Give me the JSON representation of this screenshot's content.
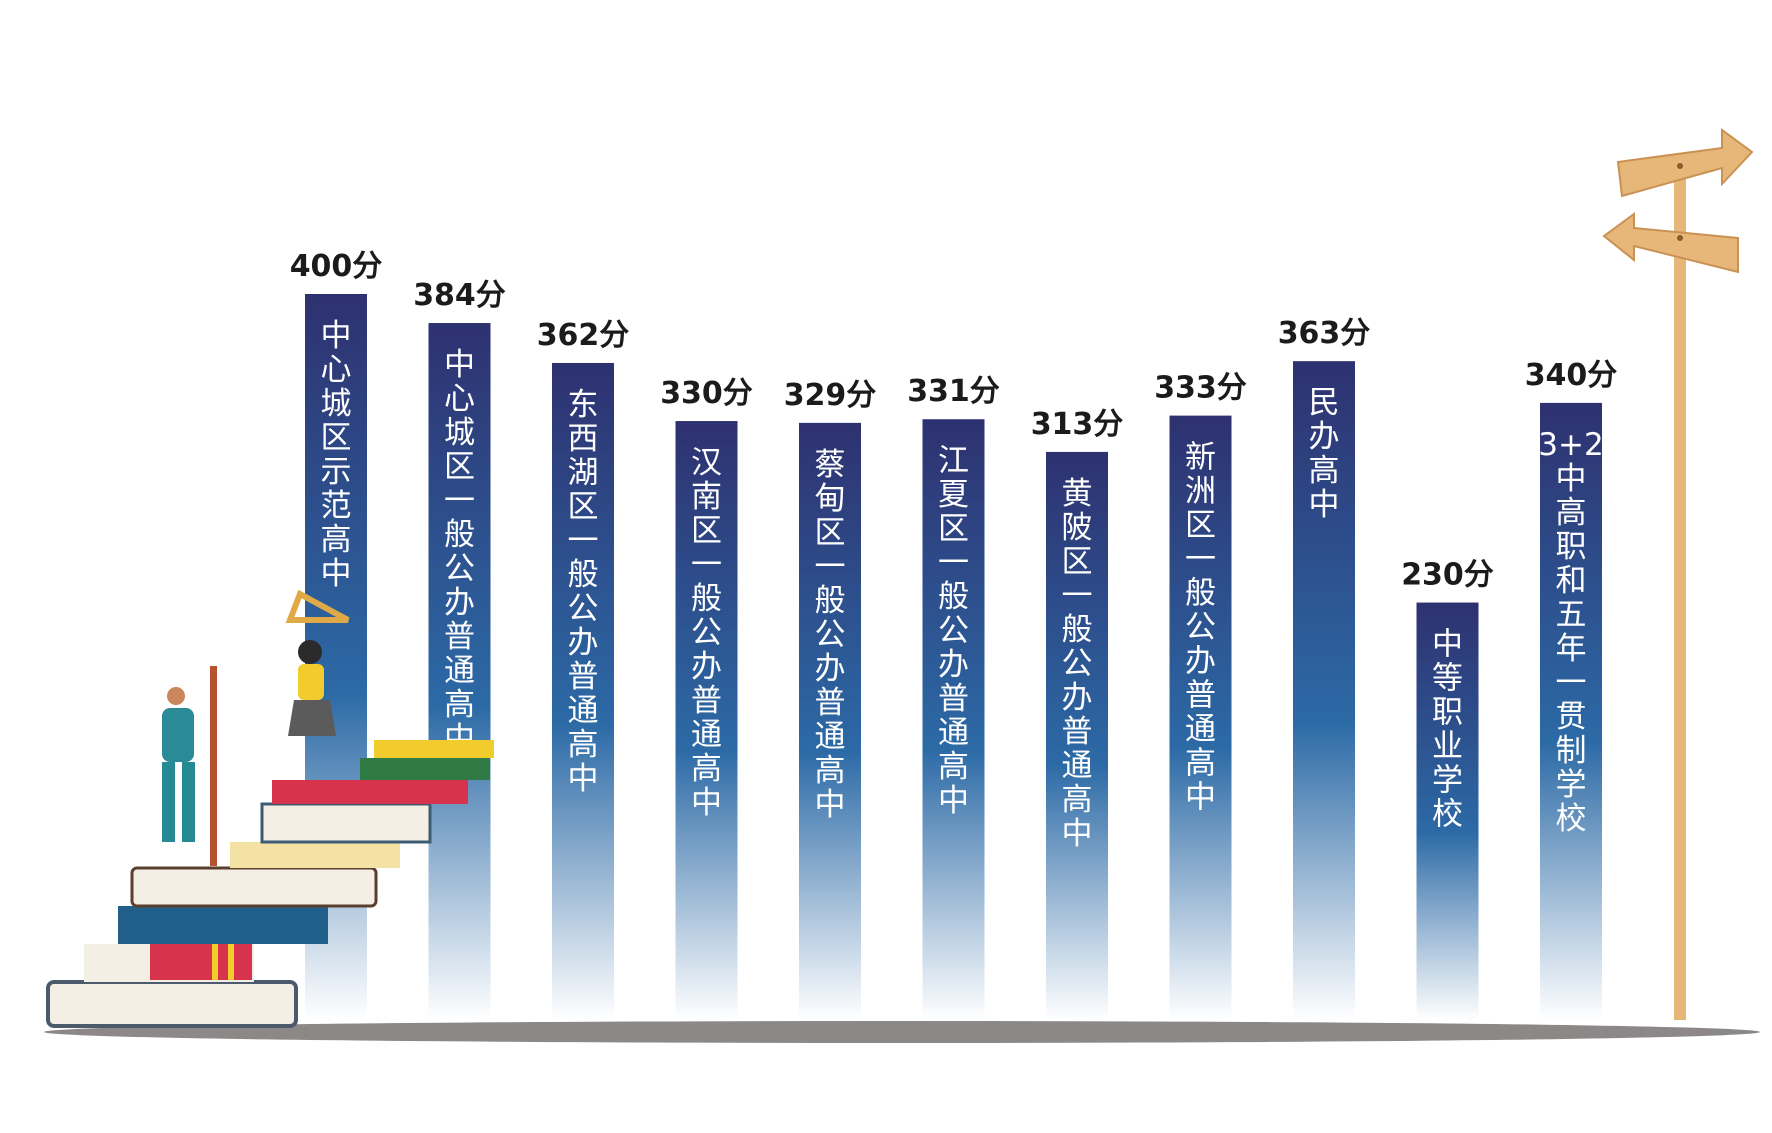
{
  "colors": {
    "bar_top": "#2e3170",
    "bar_mid": "#2c6aa6",
    "bar_bottom": "#ffffff",
    "ground": "#8c8888",
    "signpost": "#e7b77a"
  },
  "chart_data": {
    "type": "bar",
    "categories": [
      "中心城区示范高中",
      "中心城区一般公办普通高中",
      "东西湖区一般公办普通高中",
      "汉南区一般公办普通高中",
      "蔡甸区一般公办普通高中",
      "江夏区一般公办普通高中",
      "黄陂区一般公办普通高中",
      "新洲区一般公办普通高中",
      "民办高中",
      "中等职业学校",
      "“3+2”中高职和五年一贯制学校"
    ],
    "values": [
      400,
      384,
      362,
      330,
      329,
      331,
      313,
      333,
      363,
      230,
      340
    ],
    "value_labels": [
      "400分",
      "384分",
      "362分",
      "330分",
      "329分",
      "331分",
      "313分",
      "333分",
      "363分",
      "230分",
      "340分"
    ],
    "bar_text": [
      [
        "中",
        "心",
        "城",
        "区",
        "示",
        "范",
        "高",
        "中"
      ],
      [
        "中",
        "心",
        "城",
        "区",
        "一",
        "般",
        "公",
        "办",
        "普",
        "通",
        "高",
        "中"
      ],
      [
        "东",
        "西",
        "湖",
        "区",
        "一",
        "般",
        "公",
        "办",
        "普",
        "通",
        "高",
        "中"
      ],
      [
        "汉",
        "南",
        "区",
        "一",
        "般",
        "公",
        "办",
        "普",
        "通",
        "高",
        "中"
      ],
      [
        "蔡",
        "甸",
        "区",
        "一",
        "般",
        "公",
        "办",
        "普",
        "通",
        "高",
        "中"
      ],
      [
        "江",
        "夏",
        "区",
        "一",
        "般",
        "公",
        "办",
        "普",
        "通",
        "高",
        "中"
      ],
      [
        "黄",
        "陂",
        "区",
        "一",
        "般",
        "公",
        "办",
        "普",
        "通",
        "高",
        "中"
      ],
      [
        "新",
        "洲",
        "区",
        "一",
        "般",
        "公",
        "办",
        "普",
        "通",
        "高",
        "中"
      ],
      [
        "民",
        "办",
        "高",
        "中"
      ],
      [
        "中",
        "等",
        "职",
        "业",
        "学",
        "校"
      ],
      [
        "“3+2”",
        "中",
        "高",
        "职",
        "和",
        "五",
        "年",
        "一",
        "贯",
        "制",
        "学",
        "校"
      ]
    ],
    "title": "",
    "xlabel": "",
    "ylabel": "",
    "unit": "分",
    "grid": false,
    "legend": "none"
  }
}
